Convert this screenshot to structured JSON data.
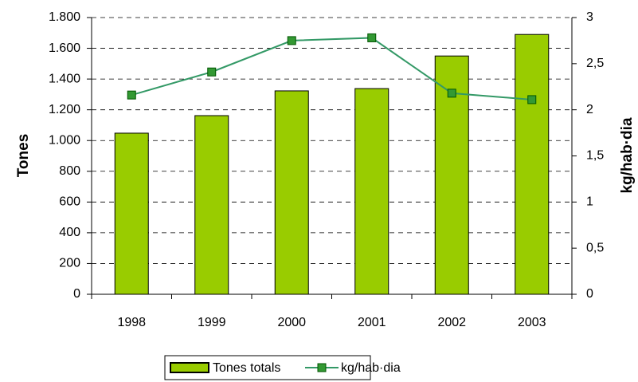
{
  "chart_data": {
    "type": "bar",
    "categories": [
      "1998",
      "1999",
      "2000",
      "2001",
      "2002",
      "2003"
    ],
    "series": [
      {
        "name": "Tones totals",
        "type": "bar",
        "color": "#99cc00",
        "values": [
          1048,
          1162,
          1323,
          1338,
          1550,
          1690
        ]
      },
      {
        "name": "kg/hab·dia",
        "type": "line",
        "axis": "y2",
        "color": "#339966",
        "marker_color": "#339933",
        "values": [
          2.16,
          2.41,
          2.75,
          2.78,
          2.18,
          2.11
        ]
      }
    ],
    "ylabel": "Tones",
    "y2label": "kg/hab·dia",
    "ylim": [
      0,
      1800
    ],
    "yticks": [
      0,
      200,
      400,
      600,
      800,
      {
        "value": 1000,
        "label": "1.000"
      },
      {
        "value": 1200,
        "label": "1.200"
      },
      {
        "value": 1400,
        "label": "1.400"
      },
      {
        "value": 1600,
        "label": "1.600"
      },
      {
        "value": 1800,
        "label": "1.800"
      }
    ],
    "y2lim": [
      0,
      3
    ],
    "y2ticks": [
      0,
      {
        "value": 0.5,
        "label": "0,5"
      },
      1,
      {
        "value": 1.5,
        "label": "1,5"
      },
      2,
      {
        "value": 2.5,
        "label": "2,5"
      },
      3
    ],
    "grid": true,
    "legend": "bottom"
  }
}
